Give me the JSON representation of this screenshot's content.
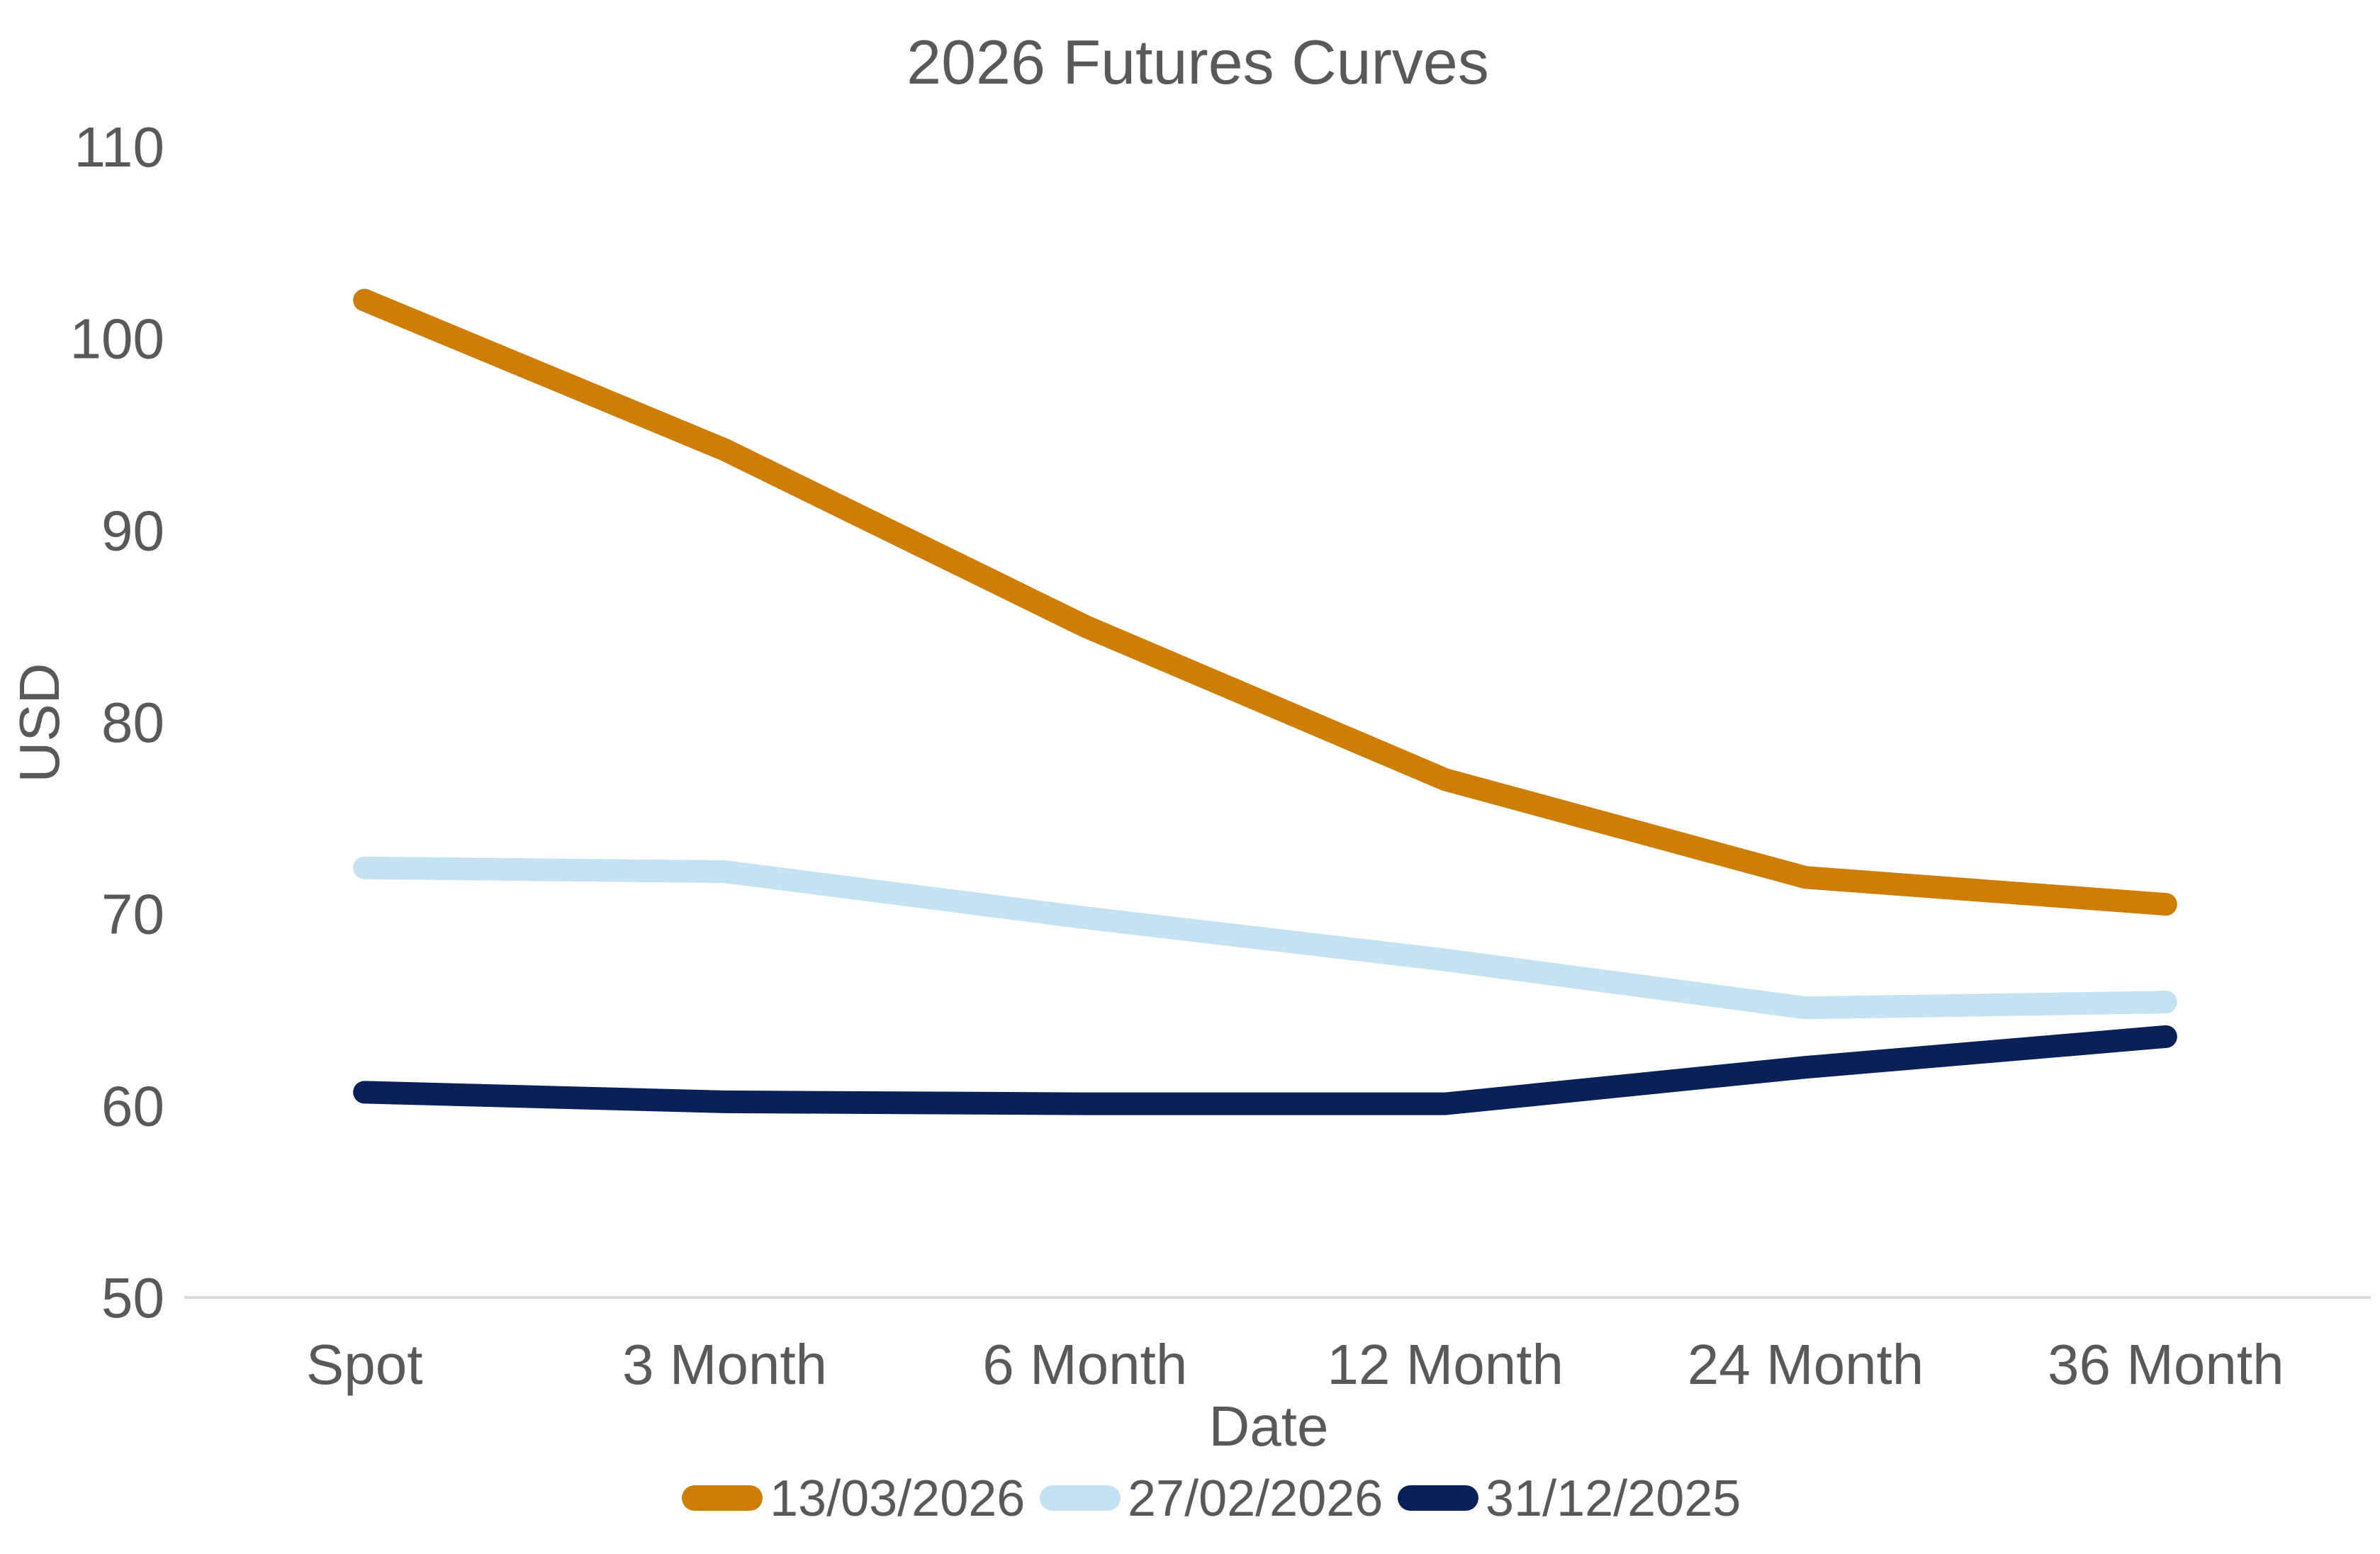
{
  "chart_data": {
    "type": "line",
    "title": "2026 Futures Curves",
    "xlabel": "Date",
    "ylabel": "USD",
    "categories": [
      "Spot",
      "3 Month",
      "6 Month",
      "12 Month",
      "24 Month",
      "36 Month"
    ],
    "series": [
      {
        "name": "13/03/2026",
        "color": "#CE7D05",
        "values": [
          102,
          94.2,
          85,
          77,
          71.9,
          70.5
        ]
      },
      {
        "name": "27/02/2026",
        "color": "#C5E2F2",
        "values": [
          72.4,
          72.2,
          69.8,
          67.6,
          65.1,
          65.4
        ]
      },
      {
        "name": "31/12/2025",
        "color": "#0A2158",
        "values": [
          60.7,
          60.2,
          60.1,
          60.1,
          62.0,
          63.6
        ]
      }
    ],
    "ylim": [
      50,
      110
    ],
    "yticks": [
      110,
      100,
      90,
      80,
      70,
      60,
      50
    ],
    "grid": false,
    "legend_position": "bottom",
    "axis_line_color": "#D9D9D9",
    "text_color": "#595959",
    "line_thickness_px": 32
  }
}
